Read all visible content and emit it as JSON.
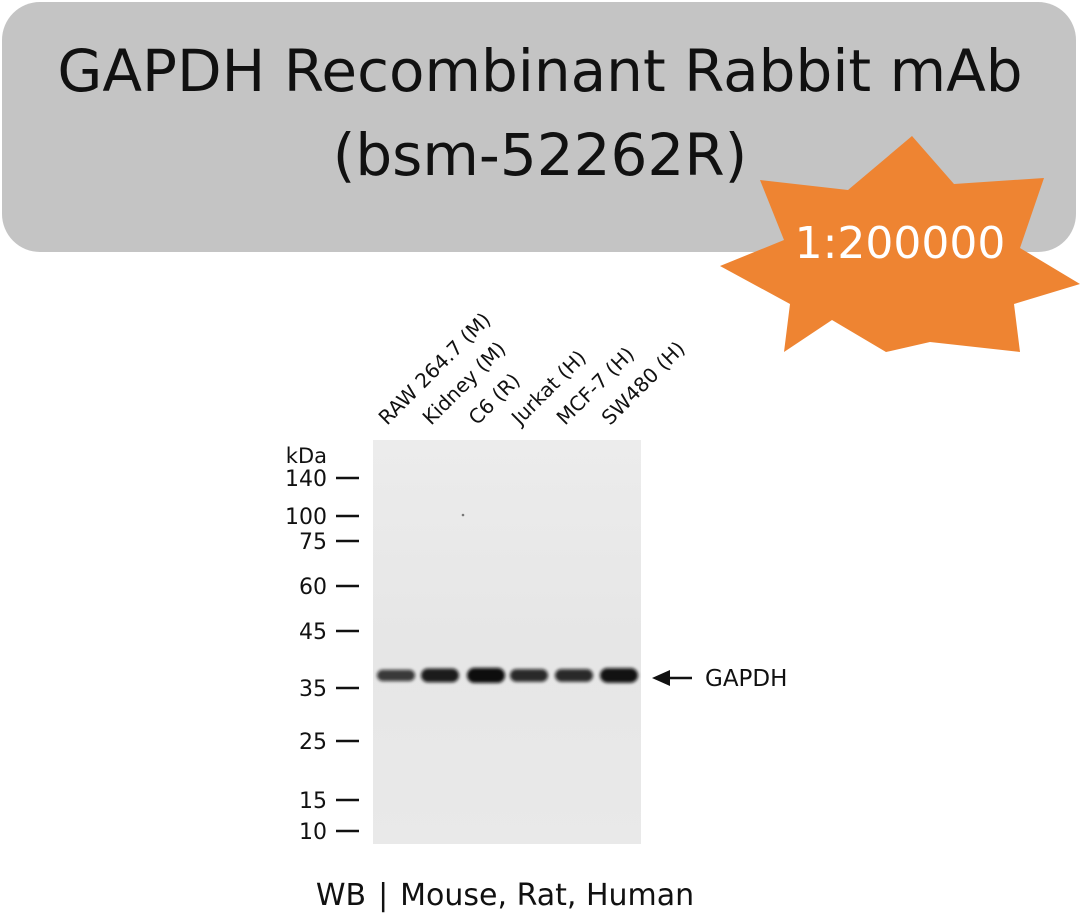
{
  "header": {
    "title_line_1": "GAPDH Recombinant Rabbit mAb",
    "title_line_2": "(bsm-52262R)",
    "banner_color": "#c4c4c4"
  },
  "badge": {
    "dilution": "1:200000",
    "color": "#ee8432"
  },
  "blot": {
    "unit_label": "kDa",
    "lanes": [
      {
        "label": "RAW 264.7 (M)",
        "band_intensity": 0.55
      },
      {
        "label": "Kidney (M)",
        "band_intensity": 0.85
      },
      {
        "label": "C6 (R)",
        "band_intensity": 1.0
      },
      {
        "label": "Jurkat (H)",
        "band_intensity": 0.7
      },
      {
        "label": "MCF-7 (H)",
        "band_intensity": 0.7
      },
      {
        "label": "SW480 (H)",
        "band_intensity": 0.95
      }
    ],
    "markers": [
      {
        "label": "140",
        "kda": 140
      },
      {
        "label": "100",
        "kda": 100
      },
      {
        "label": "75",
        "kda": 75
      },
      {
        "label": "60",
        "kda": 60
      },
      {
        "label": "45",
        "kda": 45
      },
      {
        "label": "35",
        "kda": 35
      },
      {
        "label": "25",
        "kda": 25
      },
      {
        "label": "15",
        "kda": 15
      },
      {
        "label": "10",
        "kda": 10
      }
    ],
    "target_band": {
      "label": "GAPDH",
      "kda": 37
    }
  },
  "footer": {
    "method": "WB",
    "separator": "|",
    "species": "Mouse, Rat, Human"
  }
}
